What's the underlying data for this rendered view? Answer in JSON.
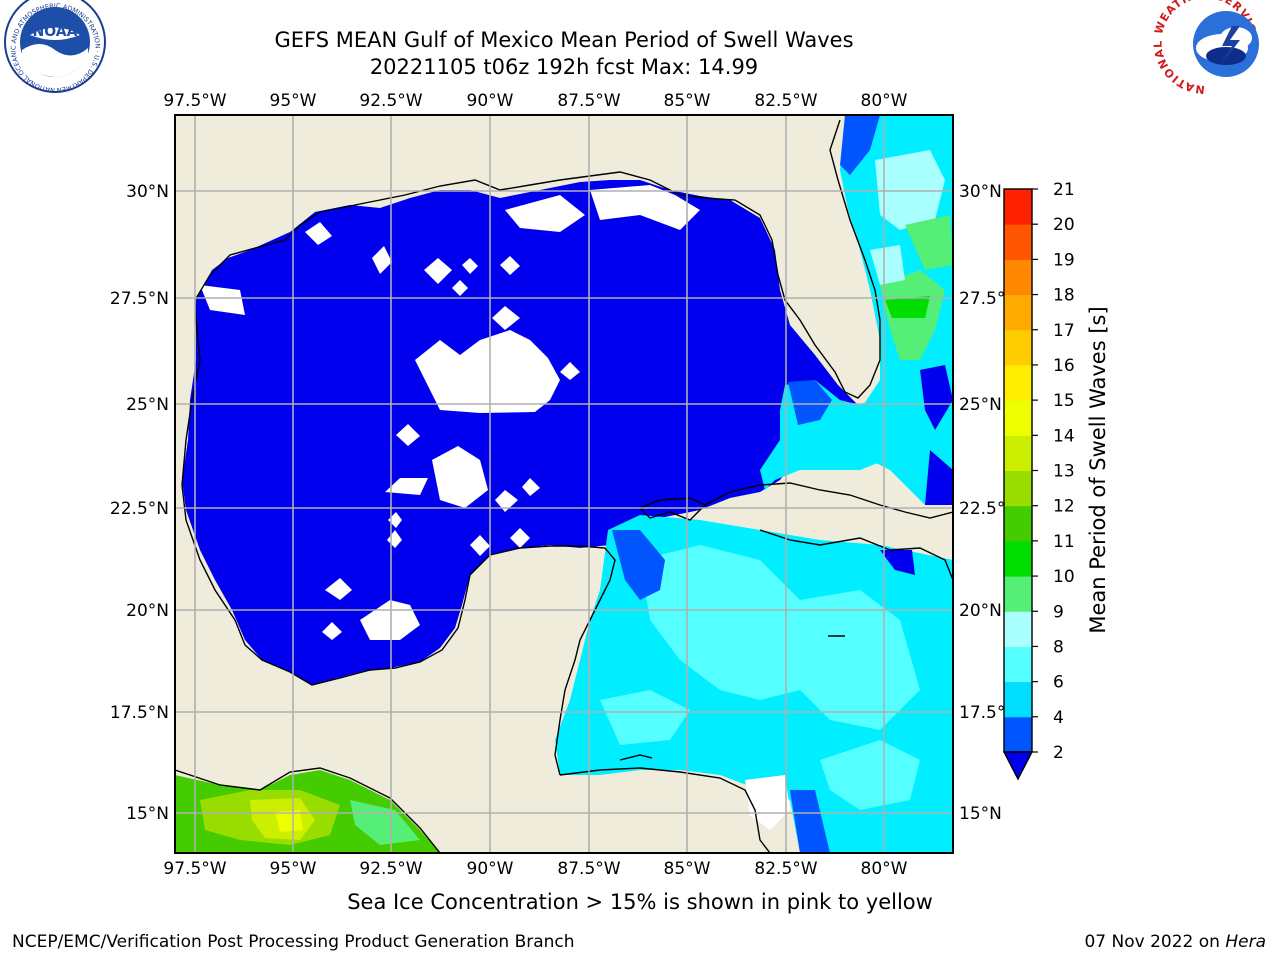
{
  "title_line1": "GEFS MEAN Gulf of Mexico Mean Period of Swell Waves",
  "title_line2": "20221105 t06z 192h fcst   Max: 14.99",
  "logos": {
    "left": {
      "name": "NOAA",
      "ring_text": "NATIONAL OCEANIC AND ATMOSPHERIC ADMINISTRATION · U.S. DEPARTMENT OF COMMERCE"
    },
    "right": {
      "ring_text": "NATIONAL WEATHER SERVICE"
    }
  },
  "map": {
    "lon_ticks": [
      "97.5°W",
      "95°W",
      "92.5°W",
      "90°W",
      "87.5°W",
      "85°W",
      "82.5°W",
      "80°W"
    ],
    "lat_ticks": [
      "30°N",
      "27.5°N",
      "25°N",
      "22.5°N",
      "20°N",
      "17.5°N",
      "15°N"
    ],
    "land_color": "#efecdc",
    "grid_color": "#b0b0b0"
  },
  "colorbar": {
    "label": "Mean Period of Swell Waves [s]",
    "ticks": [
      "2",
      "4",
      "6",
      "8",
      "9",
      "10",
      "11",
      "12",
      "13",
      "14",
      "15",
      "16",
      "17",
      "18",
      "19",
      "20",
      "21"
    ],
    "colors": [
      "#0055ff",
      "#00ddff",
      "#55ffff",
      "#aaffff",
      "#55ee77",
      "#00dd00",
      "#44cc00",
      "#99dd00",
      "#ccee00",
      "#eeff00",
      "#ffee00",
      "#ffcc00",
      "#ffaa00",
      "#ff8800",
      "#ff5500",
      "#ff2200"
    ],
    "extend_color": "#0000ee"
  },
  "caption": "Sea Ice Concentration > 15% is shown in pink to yellow",
  "footer_left": "NCEP/EMC/Verification Post Processing Product Generation Branch",
  "footer_right_date": "07 Nov 2022 on",
  "footer_right_host": "Hera"
}
